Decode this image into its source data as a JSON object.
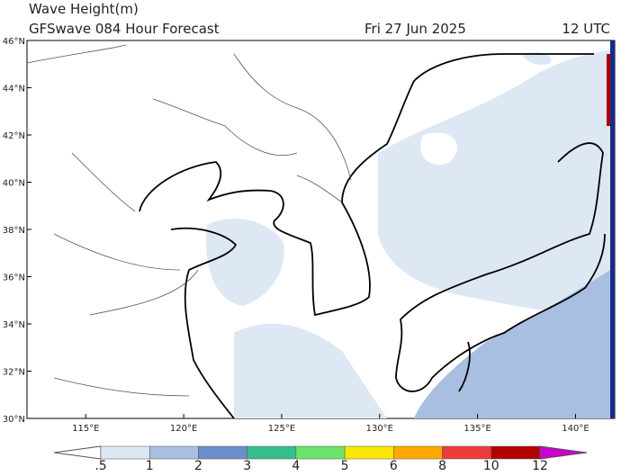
{
  "header": {
    "title": "Wave Height(m)",
    "subtitle": "GFSwave 084 Hour Forecast",
    "date": "Fri 27 Jun 2025",
    "time": "12 UTC"
  },
  "map": {
    "lat_labels": [
      "46°N",
      "44°N",
      "42°N",
      "40°N",
      "38°N",
      "36°N",
      "34°N",
      "32°N",
      "30°N"
    ],
    "lon_labels": [
      "115°E",
      "120°E",
      "125°E",
      "130°E",
      "135°E",
      "140°E"
    ]
  },
  "colorbar": {
    "labels": [
      ".5",
      "1",
      "2",
      "3",
      "4",
      "5",
      "6",
      "8",
      "10",
      "12"
    ],
    "colors": [
      "#ffffff",
      "#dde8f4",
      "#a9bfe2",
      "#6b8fcb",
      "#35be8c",
      "#6ae36a",
      "#fbe800",
      "#ffa800",
      "#ee3b3b",
      "#b20000",
      "#cc00cc"
    ]
  }
}
